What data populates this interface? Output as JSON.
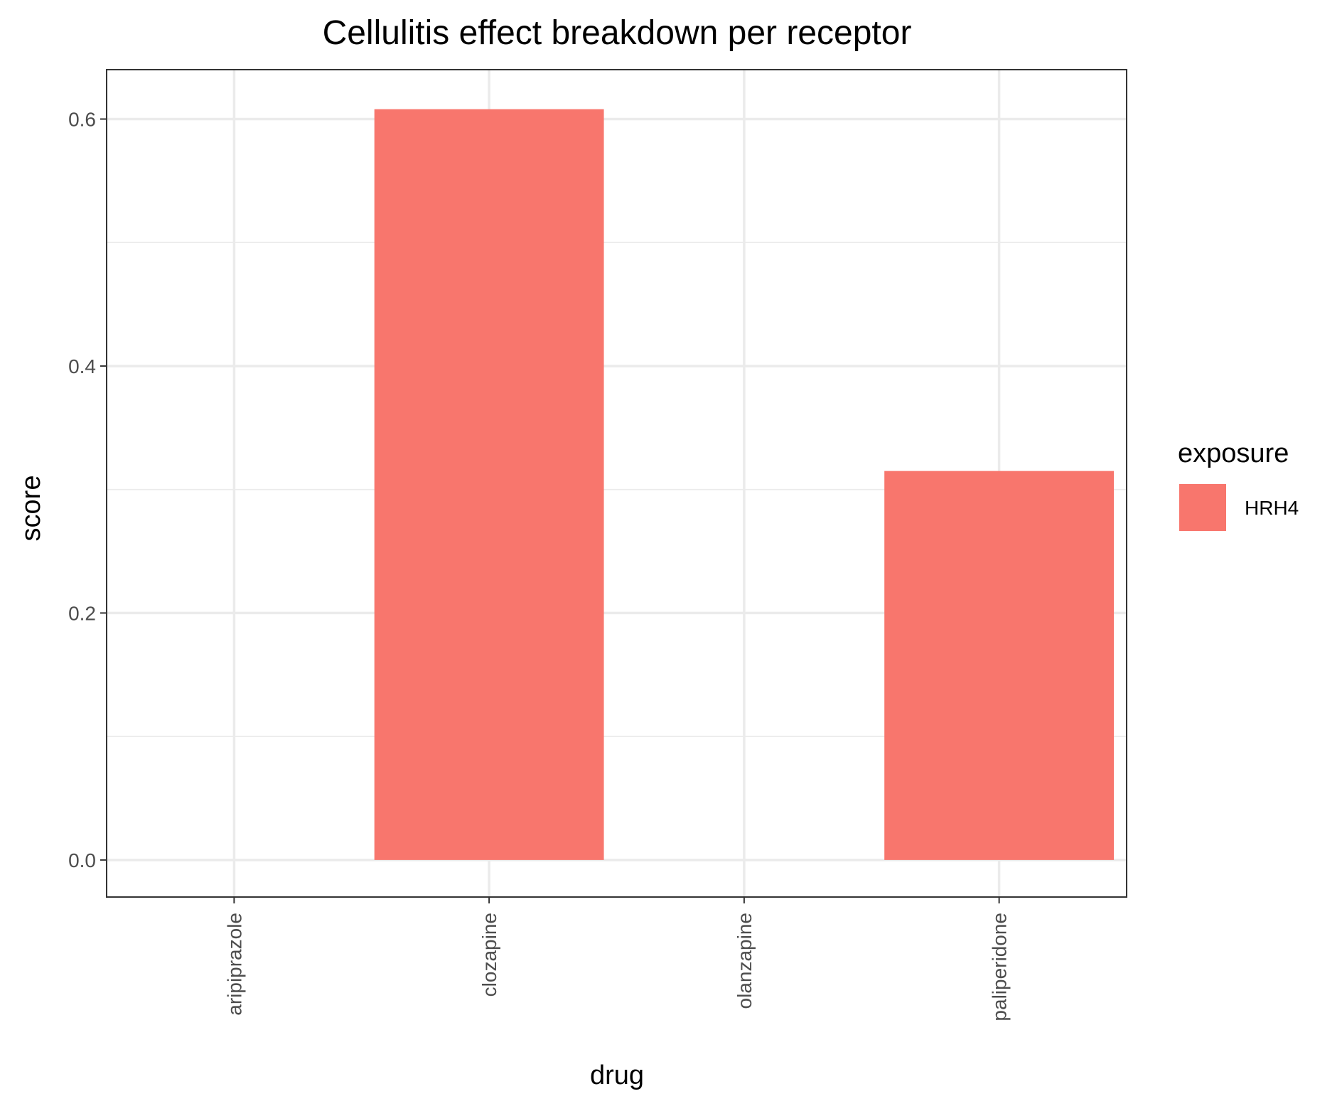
{
  "chart_data": {
    "type": "bar",
    "title": "Cellulitis effect breakdown per receptor",
    "xlabel": "drug",
    "ylabel": "score",
    "categories": [
      "aripiprazole",
      "clozapine",
      "olanzapine",
      "paliperidone"
    ],
    "series": [
      {
        "name": "HRH4",
        "color": "#F8766D",
        "values": [
          0,
          0.608,
          0,
          0.315
        ]
      }
    ],
    "ylim": [
      -0.03,
      0.64
    ],
    "yticks": [
      0.0,
      0.2,
      0.4,
      0.6
    ],
    "ytick_labels": [
      "0.0",
      "0.2",
      "0.4",
      "0.6"
    ],
    "legend": {
      "title": "exposure",
      "position": "right"
    },
    "grid": true
  }
}
